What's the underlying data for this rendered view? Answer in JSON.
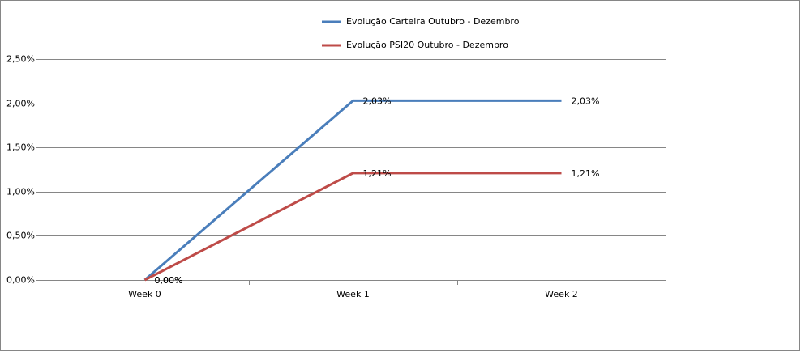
{
  "chart_data": {
    "type": "line",
    "categories": [
      "Week 0",
      "Week 1",
      "Week 2"
    ],
    "series": [
      {
        "name": "Evolução Carteira Outubro - Dezembro",
        "color": "#4a7ebb",
        "values": [
          0,
          2.03,
          2.03
        ],
        "value_labels": [
          "0,00%",
          "2,03%",
          "2,03%"
        ]
      },
      {
        "name": "Evolução PSI20 Outubro - Dezembro",
        "color": "#be4b48",
        "values": [
          0,
          1.21,
          1.21
        ],
        "value_labels": [
          "0,00%",
          "1,21%",
          "1,21%"
        ]
      }
    ],
    "ylim": [
      0,
      2.5
    ],
    "yticks": [
      {
        "value": 0,
        "label": "0,00%"
      },
      {
        "value": 0.5,
        "label": "0,50%"
      },
      {
        "value": 1,
        "label": "1,00%"
      },
      {
        "value": 1.5,
        "label": "1,50%"
      },
      {
        "value": 2,
        "label": "2,00%"
      },
      {
        "value": 2.5,
        "label": "2,50%"
      }
    ],
    "grid": true,
    "legend": "top"
  }
}
